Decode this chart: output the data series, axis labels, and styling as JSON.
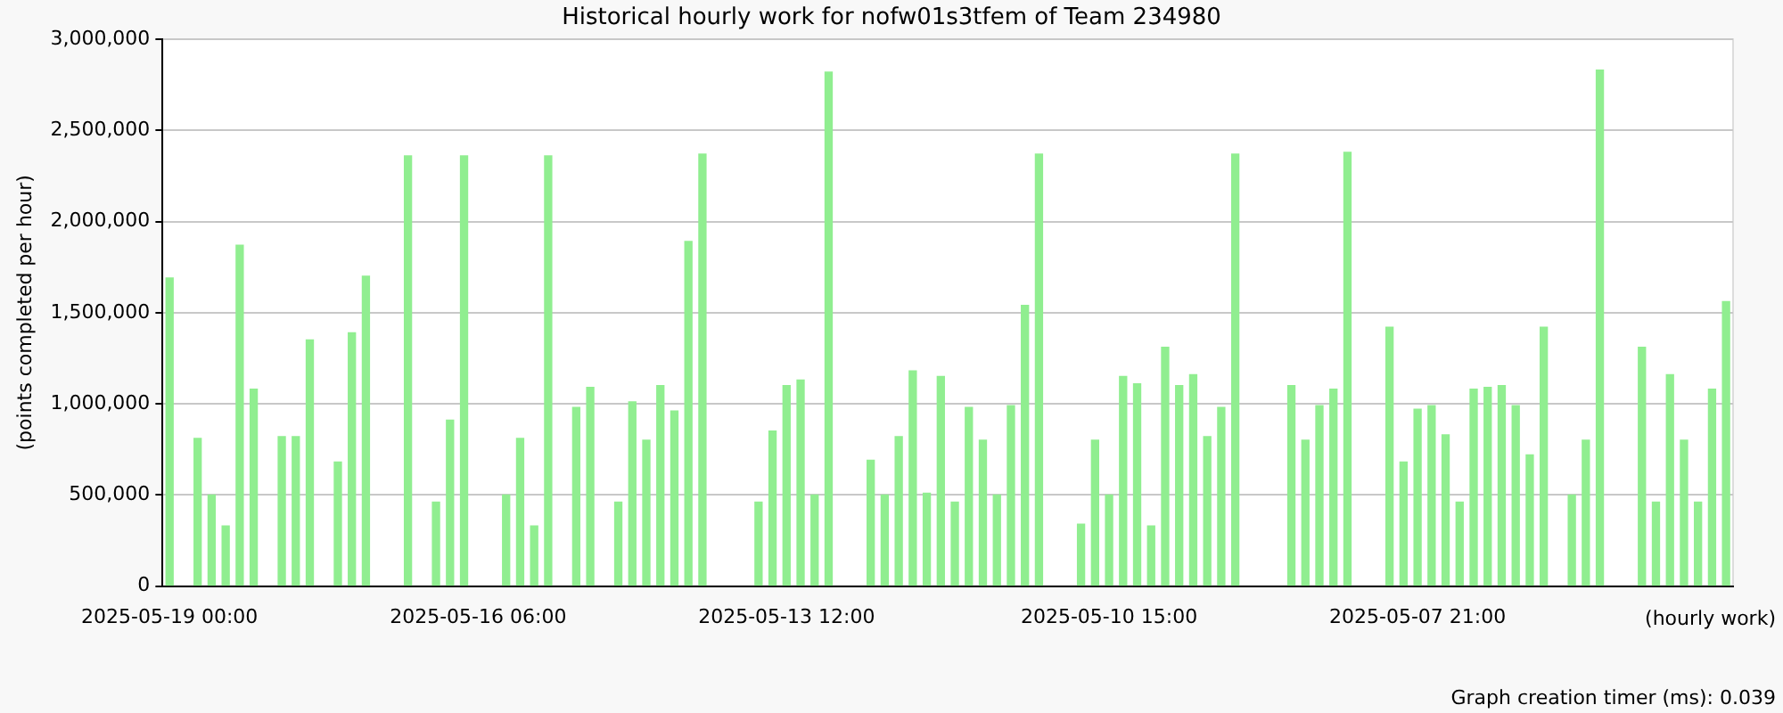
{
  "chart_data": {
    "type": "bar",
    "title": "Historical hourly work for nofw01s3tfem of Team 234980",
    "ylabel": "(points completed per hour)",
    "xlabel": "(hourly work)",
    "annotations": [
      "Graph creation timer (ms): 0.039"
    ],
    "categories": [
      "2025-05-19 00:00",
      null,
      null,
      null,
      null,
      null,
      null,
      null,
      null,
      null,
      null,
      null,
      null,
      null,
      null,
      null,
      null,
      null,
      null,
      null,
      null,
      null,
      "2025-05-16 06:00",
      null,
      null,
      null,
      null,
      null,
      null,
      null,
      null,
      null,
      null,
      null,
      null,
      null,
      null,
      null,
      null,
      null,
      null,
      null,
      null,
      null,
      "2025-05-13 12:00",
      null,
      null,
      null,
      null,
      null,
      null,
      null,
      null,
      null,
      null,
      null,
      null,
      null,
      null,
      null,
      null,
      null,
      null,
      null,
      null,
      null,
      null,
      "2025-05-10 15:00",
      null,
      null,
      null,
      null,
      null,
      null,
      null,
      null,
      null,
      null,
      null,
      null,
      null,
      null,
      null,
      null,
      null,
      null,
      null,
      null,
      null,
      "2025-05-07 21:00",
      null,
      null,
      null,
      null,
      null,
      null,
      null,
      null,
      null,
      null,
      null,
      null,
      null,
      null,
      null,
      null,
      null,
      null,
      null,
      null,
      null,
      null
    ],
    "values": [
      1690000,
      null,
      810000,
      500000,
      330000,
      1870000,
      1080000,
      null,
      820000,
      820000,
      1350000,
      null,
      680000,
      1390000,
      1700000,
      null,
      null,
      2360000,
      null,
      460000,
      910000,
      2360000,
      null,
      null,
      500000,
      810000,
      330000,
      2360000,
      null,
      980000,
      1090000,
      null,
      460000,
      1010000,
      800000,
      1100000,
      960000,
      1890000,
      2370000,
      null,
      null,
      null,
      460000,
      850000,
      1100000,
      1130000,
      500000,
      2820000,
      null,
      null,
      690000,
      500000,
      820000,
      1180000,
      510000,
      1150000,
      460000,
      980000,
      800000,
      500000,
      990000,
      1540000,
      2370000,
      null,
      null,
      340000,
      800000,
      500000,
      1150000,
      1110000,
      330000,
      1310000,
      1100000,
      1160000,
      820000,
      980000,
      2370000,
      null,
      null,
      null,
      1100000,
      800000,
      990000,
      1080000,
      2380000,
      null,
      null,
      1420000,
      680000,
      970000,
      990000,
      830000,
      460000,
      1080000,
      1090000,
      1100000,
      990000,
      720000,
      1420000,
      null,
      500000,
      800000,
      2830000,
      null,
      null,
      1310000,
      460000,
      1160000,
      800000,
      460000,
      1080000,
      1560000
    ],
    "color": "#90ee90",
    "ylim": [
      0,
      3000000
    ],
    "yticks": [
      0,
      {
        "value": 500000,
        "label": "500,000"
      },
      {
        "value": 1000000,
        "label": "1,000,000"
      },
      {
        "value": 1500000,
        "label": "1,500,000"
      },
      {
        "value": 2000000,
        "label": "2,000,000"
      },
      {
        "value": 2500000,
        "label": "2,500,000"
      },
      {
        "value": 3000000,
        "label": "3,000,000"
      }
    ],
    "grid": "y"
  }
}
